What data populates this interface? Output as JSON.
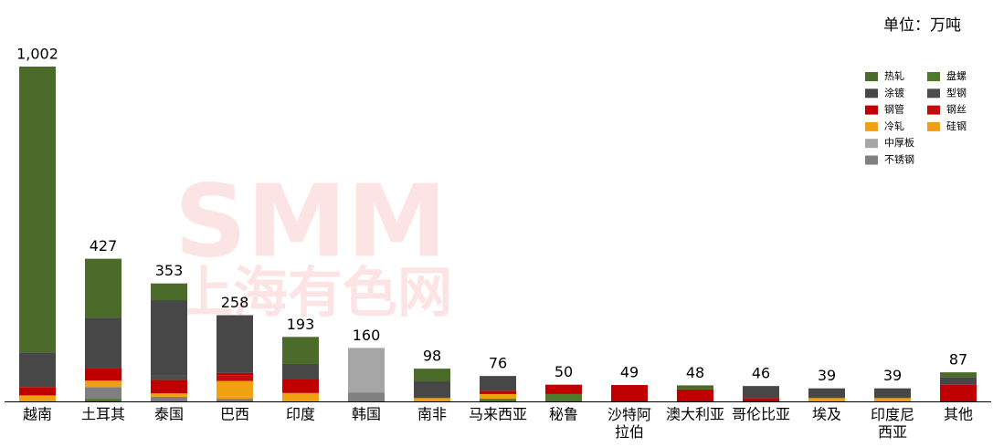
{
  "chart_data": {
    "type": "stacked_bar",
    "subtitle": "单位：万吨",
    "watermark": {
      "logo": "SMM",
      "name": "上海有色网"
    },
    "categories": [
      "越南",
      "土耳其",
      "泰国",
      "巴西",
      "印度",
      "韩国",
      "南非",
      "马来西亚",
      "秘鲁",
      "沙特阿拉伯",
      "澳大利亚",
      "哥伦比亚",
      "埃及",
      "印度尼西亚",
      "其他"
    ],
    "totals": [
      1002,
      427,
      353,
      258,
      193,
      160,
      98,
      76,
      50,
      49,
      48,
      46,
      39,
      39,
      87
    ],
    "total_labels": [
      "1,002",
      "427",
      "353",
      "258",
      "193",
      "160",
      "98",
      "76",
      "50",
      "49",
      "48",
      "46",
      "39",
      "39",
      "87"
    ],
    "series": [
      {
        "name": "热轧",
        "color": "#4a6b2a",
        "values": [
          855,
          177,
          50,
          0,
          81,
          0,
          38,
          0,
          0,
          0,
          12,
          0,
          0,
          0,
          15
        ]
      },
      {
        "name": "盘螺",
        "color": "#4f7a2c",
        "values": [
          0,
          8,
          0,
          0,
          0,
          0,
          0,
          8,
          22,
          0,
          0,
          0,
          0,
          0,
          0
        ]
      },
      {
        "name": "涂镀",
        "color": "#474747",
        "values": [
          104,
          150,
          225,
          173,
          45,
          0,
          50,
          44,
          0,
          0,
          0,
          36,
          29,
          29,
          22
        ]
      },
      {
        "name": "型钢",
        "color": "#4d4d4d",
        "values": [
          0,
          0,
          14,
          0,
          0,
          0,
          0,
          0,
          0,
          0,
          0,
          0,
          0,
          0,
          0
        ]
      },
      {
        "name": "钢管",
        "color": "#c00000",
        "values": [
          25,
          38,
          40,
          8,
          42,
          0,
          0,
          10,
          28,
          49,
          36,
          10,
          0,
          0,
          50
        ]
      },
      {
        "name": "钢丝",
        "color": "#c30d0d",
        "values": [
          0,
          0,
          0,
          16,
          0,
          0,
          0,
          0,
          0,
          0,
          0,
          0,
          0,
          0,
          0
        ]
      },
      {
        "name": "冷轧",
        "color": "#f0a010",
        "values": [
          18,
          19,
          10,
          45,
          25,
          0,
          10,
          14,
          0,
          0,
          0,
          0,
          10,
          10,
          0
        ]
      },
      {
        "name": "硅钢",
        "color": "#f29d18",
        "values": [
          0,
          0,
          0,
          8,
          0,
          0,
          0,
          0,
          0,
          0,
          0,
          0,
          0,
          0,
          0
        ]
      },
      {
        "name": "中厚板",
        "color": "#a6a6a6",
        "values": [
          0,
          0,
          0,
          0,
          0,
          133,
          0,
          0,
          0,
          0,
          0,
          0,
          0,
          0,
          0
        ]
      },
      {
        "name": "不锈钢",
        "color": "#808080",
        "values": [
          0,
          35,
          14,
          8,
          0,
          27,
          0,
          0,
          0,
          0,
          0,
          0,
          0,
          0,
          0
        ]
      }
    ]
  }
}
